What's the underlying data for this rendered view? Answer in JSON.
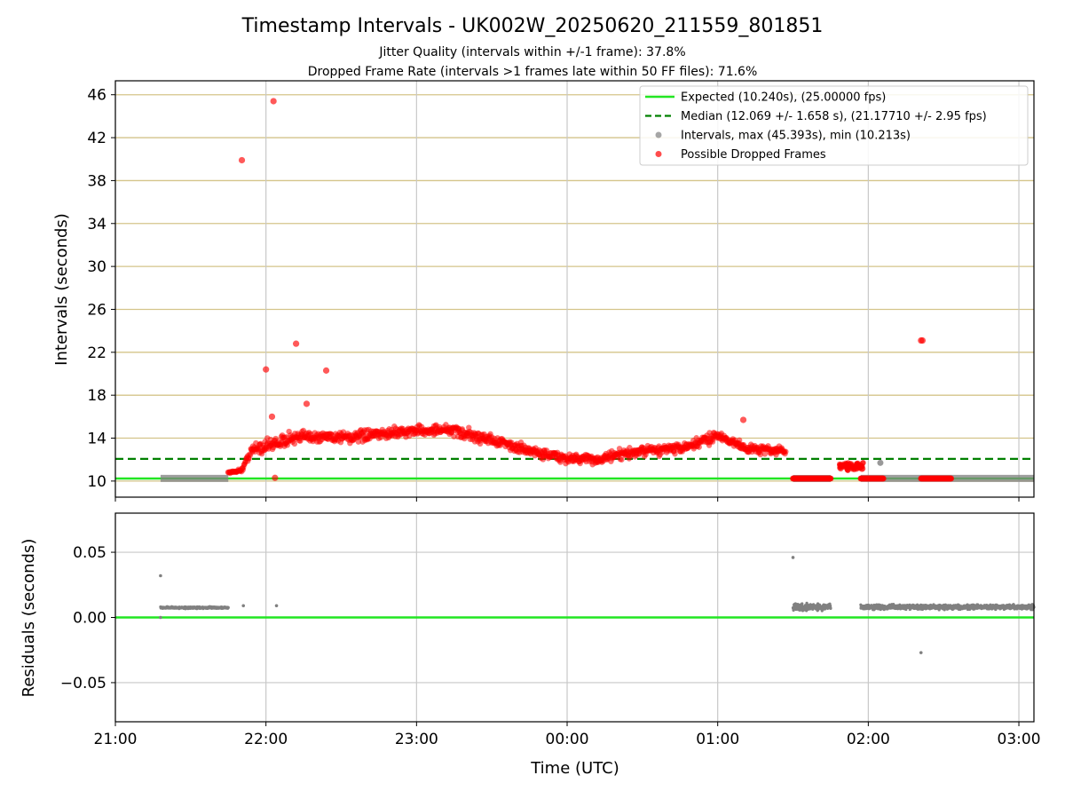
{
  "chart_data": [
    {
      "panel": "top",
      "type": "scatter",
      "title": "Timestamp Intervals - UK002W_20250620_211559_801851",
      "subtitle_1": "Jitter Quality (intervals within +/-1 frame): 37.8%",
      "subtitle_2": "Dropped Frame Rate (intervals >1 frames late within 50 FF files): 71.6%",
      "ylabel": "Intervals (seconds)",
      "ylim": [
        8.5,
        47.3
      ],
      "yticks": [
        "10",
        "14",
        "18",
        "22",
        "26",
        "30",
        "34",
        "38",
        "42",
        "46"
      ],
      "ytick_values": [
        10,
        14,
        18,
        22,
        26,
        30,
        34,
        38,
        42,
        46
      ],
      "xlim_hours": [
        0,
        6.1
      ],
      "xticks": [
        "21:00",
        "22:00",
        "23:00",
        "00:00",
        "01:00",
        "02:00",
        "03:00"
      ],
      "grid": "horizontal gold lines at y ticks, gray vertical lines at x ticks",
      "legend_position": "top-right",
      "expected_interval": 10.24,
      "median_interval": 12.069,
      "legend": [
        {
          "label": "Expected (10.240s), (25.00000 fps)",
          "style": "line",
          "color": "#22e622"
        },
        {
          "label": "Median (12.069 +/- 1.658 s), (21.17710 +/- 2.95 fps)",
          "style": "dashed",
          "color": "#008000"
        },
        {
          "label": "Intervals, max (45.393s), min (10.213s)",
          "style": "marker",
          "color": "#808080"
        },
        {
          "label": "Possible Dropped Frames",
          "style": "marker",
          "color": "#ff0000"
        }
      ],
      "series": [
        {
          "name": "Intervals, max (45.393s), min (10.213s)",
          "color": "#808080",
          "segments": [
            {
              "start_hours": 0.3,
              "end_hours": 0.75,
              "y": 10.25
            },
            {
              "start_hours": 4.5,
              "end_hours": 4.75,
              "y": 10.24
            },
            {
              "start_hours": 4.95,
              "end_hours": 6.1,
              "y": 10.25
            }
          ],
          "points": [
            {
              "x_hours": 5.08,
              "y": 11.7
            }
          ]
        },
        {
          "name": "Possible Dropped Frames",
          "color": "#ff0000",
          "profile": [
            {
              "x_hours": 0.75,
              "y": 10.8,
              "spread": 0.1
            },
            {
              "x_hours": 0.84,
              "y": 11.0,
              "spread": 0.2
            },
            {
              "x_hours": 0.9,
              "y": 12.9,
              "spread": 0.6
            },
            {
              "x_hours": 1.1,
              "y": 13.7,
              "spread": 0.8
            },
            {
              "x_hours": 1.3,
              "y": 14.2,
              "spread": 0.7
            },
            {
              "x_hours": 1.6,
              "y": 14.1,
              "spread": 0.6
            },
            {
              "x_hours": 1.9,
              "y": 14.6,
              "spread": 0.6
            },
            {
              "x_hours": 2.2,
              "y": 14.8,
              "spread": 0.6
            },
            {
              "x_hours": 2.5,
              "y": 13.8,
              "spread": 0.6
            },
            {
              "x_hours": 2.75,
              "y": 12.8,
              "spread": 0.6
            },
            {
              "x_hours": 3.0,
              "y": 12.1,
              "spread": 0.5
            },
            {
              "x_hours": 3.2,
              "y": 12.0,
              "spread": 0.6
            },
            {
              "x_hours": 3.5,
              "y": 12.8,
              "spread": 0.6
            },
            {
              "x_hours": 3.8,
              "y": 13.1,
              "spread": 0.6
            },
            {
              "x_hours": 4.0,
              "y": 14.3,
              "spread": 0.6
            },
            {
              "x_hours": 4.2,
              "y": 13.0,
              "spread": 0.5
            },
            {
              "x_hours": 4.45,
              "y": 12.8,
              "spread": 0.5
            }
          ],
          "flat_segments": [
            {
              "start_hours": 4.5,
              "end_hours": 4.75,
              "y": 10.24
            },
            {
              "start_hours": 4.95,
              "end_hours": 5.1,
              "y": 10.24
            },
            {
              "start_hours": 5.35,
              "end_hours": 5.55,
              "y": 10.24
            }
          ],
          "cluster": {
            "start_hours": 4.8,
            "end_hours": 4.97,
            "y": 11.4,
            "spread": 0.4
          },
          "outliers": [
            {
              "x_hours": 0.84,
              "y": 39.9
            },
            {
              "x_hours": 1.05,
              "y": 45.4
            },
            {
              "x_hours": 1.0,
              "y": 20.4
            },
            {
              "x_hours": 1.2,
              "y": 22.8
            },
            {
              "x_hours": 1.4,
              "y": 20.3
            },
            {
              "x_hours": 1.27,
              "y": 17.2
            },
            {
              "x_hours": 1.04,
              "y": 16.0
            },
            {
              "x_hours": 1.06,
              "y": 10.3
            },
            {
              "x_hours": 4.17,
              "y": 15.7
            },
            {
              "x_hours": 5.35,
              "y": 23.1
            },
            {
              "x_hours": 5.36,
              "y": 23.1
            }
          ]
        }
      ]
    },
    {
      "panel": "bottom",
      "type": "scatter",
      "xlabel": "Time (UTC)",
      "ylabel": "Residuals (seconds)",
      "ylim": [
        -0.08,
        0.08
      ],
      "yticks": [
        "−0.05",
        "0.00",
        "0.05"
      ],
      "ytick_values": [
        -0.05,
        0,
        0.05
      ],
      "xlim_hours": [
        0,
        6.1
      ],
      "xticks": [
        "21:00",
        "22:00",
        "23:00",
        "00:00",
        "01:00",
        "02:00",
        "03:00"
      ],
      "grid": "gray lines at x and y ticks",
      "zero_line_color": "#22e622",
      "series": [
        {
          "name": "Residuals",
          "color": "#808080",
          "bands": [
            {
              "start_hours": 0.3,
              "end_hours": 0.75,
              "y": 0.0075,
              "spread": 0.0008
            },
            {
              "start_hours": 4.5,
              "end_hours": 4.75,
              "y": 0.008,
              "spread": 0.003
            },
            {
              "start_hours": 4.95,
              "end_hours": 6.1,
              "y": 0.008,
              "spread": 0.002
            }
          ],
          "points": [
            {
              "x_hours": 0.3,
              "y": 0.032
            },
            {
              "x_hours": 0.3,
              "y": 0.0
            },
            {
              "x_hours": 0.85,
              "y": 0.009
            },
            {
              "x_hours": 1.07,
              "y": 0.009
            },
            {
              "x_hours": 4.5,
              "y": 0.046
            },
            {
              "x_hours": 5.35,
              "y": -0.027
            }
          ]
        }
      ]
    }
  ]
}
